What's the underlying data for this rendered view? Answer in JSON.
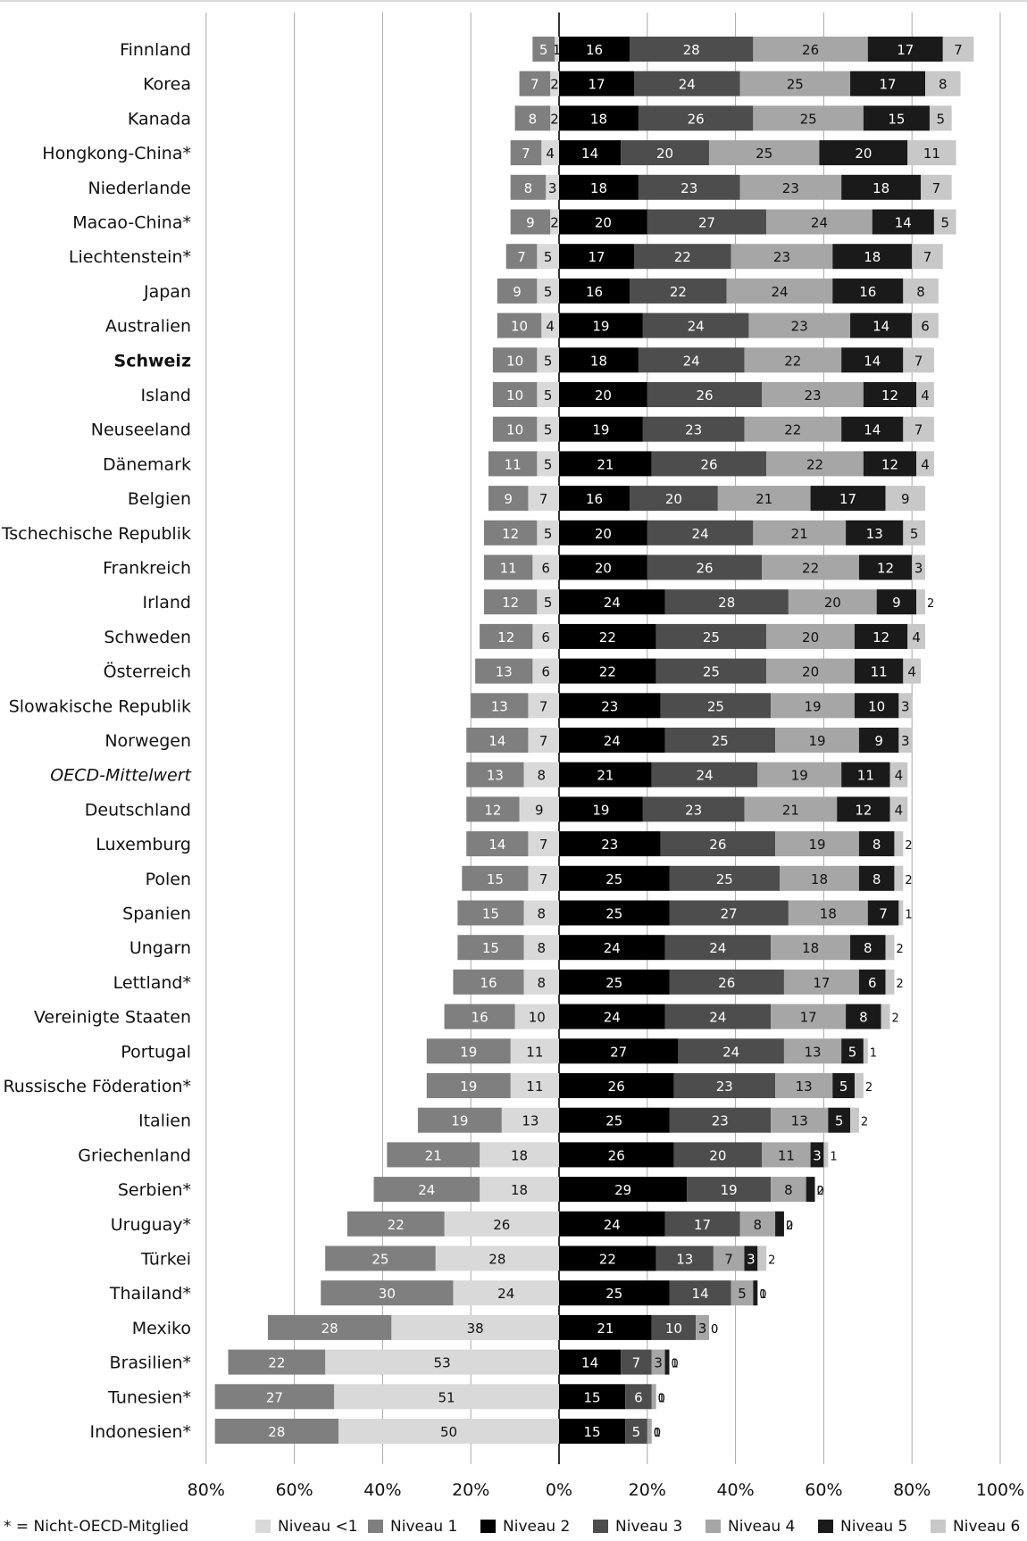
{
  "chart_data": {
    "type": "bar",
    "stacked": true,
    "orientation": "horizontal",
    "diverging": true,
    "categories": [
      "Finnland",
      "Korea",
      "Kanada",
      "Hongkong-China*",
      "Niederlande",
      "Macao-China*",
      "Liechtenstein*",
      "Japan",
      "Australien",
      "Schweiz",
      "Island",
      "Neuseeland",
      "Dänemark",
      "Belgien",
      "Tschechische Republik",
      "Frankreich",
      "Irland",
      "Schweden",
      "Österreich",
      "Slowakische Republik",
      "Norwegen",
      "OECD-Mittelwert",
      "Deutschland",
      "Luxemburg",
      "Polen",
      "Spanien",
      "Ungarn",
      "Lettland*",
      "Vereinigte Staaten",
      "Portugal",
      "Russische Föderation*",
      "Italien",
      "Griechenland",
      "Serbien*",
      "Uruguay*",
      "Türkei",
      "Thailand*",
      "Mexiko",
      "Brasilien*",
      "Tunesien*",
      "Indonesien*"
    ],
    "bold_category": "Schweiz",
    "italic_category": "OECD-Mittelwert",
    "series": [
      {
        "name": "Niveau <1",
        "color": "#d9d9d9",
        "side": "negative",
        "values": [
          1,
          2,
          2,
          4,
          3,
          2,
          5,
          5,
          4,
          5,
          5,
          5,
          5,
          7,
          5,
          6,
          5,
          6,
          6,
          7,
          7,
          8,
          9,
          7,
          7,
          8,
          8,
          8,
          10,
          11,
          11,
          13,
          18,
          18,
          26,
          28,
          24,
          38,
          53,
          51,
          50
        ]
      },
      {
        "name": "Niveau 1",
        "color": "#7f7f7f",
        "side": "negative",
        "values": [
          5,
          7,
          8,
          7,
          8,
          9,
          7,
          9,
          10,
          10,
          10,
          10,
          11,
          9,
          12,
          11,
          12,
          12,
          13,
          13,
          14,
          13,
          12,
          14,
          15,
          15,
          15,
          16,
          16,
          19,
          19,
          19,
          21,
          24,
          22,
          25,
          30,
          28,
          22,
          27,
          28
        ]
      },
      {
        "name": "Niveau 2",
        "color": "#000000",
        "side": "positive",
        "values": [
          16,
          17,
          18,
          14,
          18,
          20,
          17,
          16,
          19,
          18,
          20,
          19,
          21,
          16,
          20,
          20,
          24,
          22,
          22,
          23,
          24,
          21,
          19,
          23,
          25,
          25,
          24,
          25,
          24,
          27,
          26,
          25,
          26,
          29,
          24,
          22,
          25,
          21,
          14,
          15,
          15
        ]
      },
      {
        "name": "Niveau 3",
        "color": "#4d4d4d",
        "side": "positive",
        "values": [
          28,
          24,
          26,
          20,
          23,
          27,
          22,
          22,
          24,
          24,
          26,
          23,
          26,
          20,
          24,
          26,
          28,
          25,
          25,
          25,
          25,
          24,
          23,
          26,
          25,
          27,
          24,
          26,
          24,
          24,
          23,
          23,
          20,
          19,
          17,
          13,
          14,
          10,
          7,
          6,
          5
        ]
      },
      {
        "name": "Niveau 4",
        "color": "#a6a6a6",
        "side": "positive",
        "values": [
          26,
          25,
          25,
          25,
          23,
          24,
          23,
          24,
          23,
          22,
          23,
          22,
          22,
          21,
          21,
          22,
          20,
          20,
          20,
          19,
          19,
          19,
          21,
          19,
          18,
          18,
          18,
          17,
          17,
          13,
          13,
          13,
          11,
          8,
          8,
          7,
          5,
          3,
          3,
          1,
          1
        ]
      },
      {
        "name": "Niveau 5",
        "color": "#1a1a1a",
        "side": "positive",
        "values": [
          17,
          17,
          15,
          20,
          18,
          14,
          18,
          16,
          14,
          14,
          12,
          14,
          12,
          17,
          13,
          12,
          9,
          12,
          11,
          10,
          9,
          11,
          12,
          8,
          8,
          7,
          8,
          6,
          8,
          5,
          5,
          5,
          3,
          2,
          2,
          3,
          1,
          0,
          1,
          0,
          0
        ]
      },
      {
        "name": "Niveau 6",
        "color": "#c8c8c8",
        "side": "positive",
        "values": [
          7,
          8,
          5,
          11,
          7,
          5,
          7,
          8,
          6,
          7,
          4,
          7,
          4,
          9,
          5,
          3,
          2,
          4,
          4,
          3,
          3,
          4,
          4,
          2,
          2,
          1,
          2,
          2,
          2,
          1,
          2,
          2,
          1,
          0,
          0,
          2,
          0,
          0,
          0,
          0,
          0
        ]
      }
    ],
    "xlim": [
      -80,
      100
    ],
    "x_ticks": [
      "80%",
      "60%",
      "40%",
      "20%",
      "0%",
      "20%",
      "40%",
      "60%",
      "80%",
      "100%"
    ],
    "grid": true,
    "legend": "bottom",
    "legend_note": "* = Nicht-OECD-Mitglied"
  }
}
